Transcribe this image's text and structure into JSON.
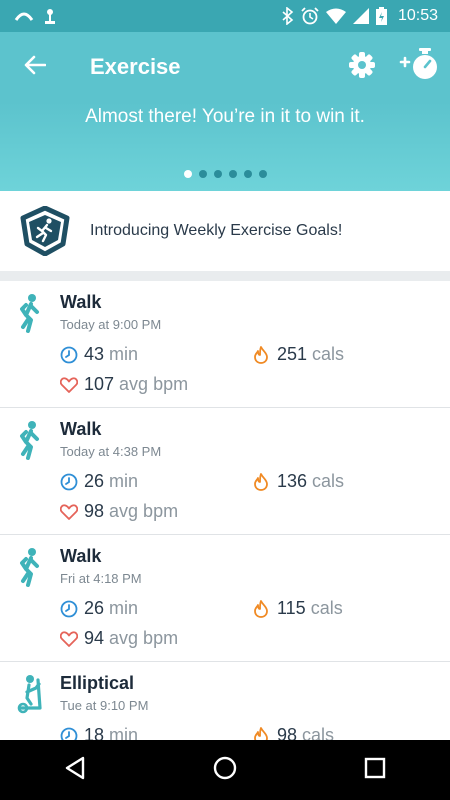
{
  "status_bar": {
    "time": "10:53"
  },
  "header": {
    "title": "Exercise"
  },
  "hero": {
    "message": "Almost there! You’re in it to win it.",
    "dots_total": 6,
    "dots_active_index": 0
  },
  "promo": {
    "text": "Introducing Weekly Exercise Goals!"
  },
  "exercises": [
    {
      "name": "Walk",
      "date": "Today at 9:00 PM",
      "duration": "43",
      "duration_unit": "min",
      "calories": "251",
      "calories_unit": "cals",
      "bpm": "107",
      "bpm_unit": "avg bpm",
      "icon": "walk-icon"
    },
    {
      "name": "Walk",
      "date": "Today at 4:38 PM",
      "duration": "26",
      "duration_unit": "min",
      "calories": "136",
      "calories_unit": "cals",
      "bpm": "98",
      "bpm_unit": "avg bpm",
      "icon": "walk-icon"
    },
    {
      "name": "Walk",
      "date": "Fri at 4:18 PM",
      "duration": "26",
      "duration_unit": "min",
      "calories": "115",
      "calories_unit": "cals",
      "bpm": "94",
      "bpm_unit": "avg bpm",
      "icon": "walk-icon"
    },
    {
      "name": "Elliptical",
      "date": "Tue at 9:10 PM",
      "duration": "18",
      "duration_unit": "min",
      "calories": "98",
      "calories_unit": "cals",
      "icon": "elliptical-icon"
    }
  ],
  "colors": {
    "teal": "#5cc3cd",
    "teal_dark": "#2b8d9a",
    "icon_teal": "#3fb3b9",
    "clock_blue": "#2f8fd6",
    "flame_orange": "#f08a24",
    "heart_red": "#e5645a"
  }
}
